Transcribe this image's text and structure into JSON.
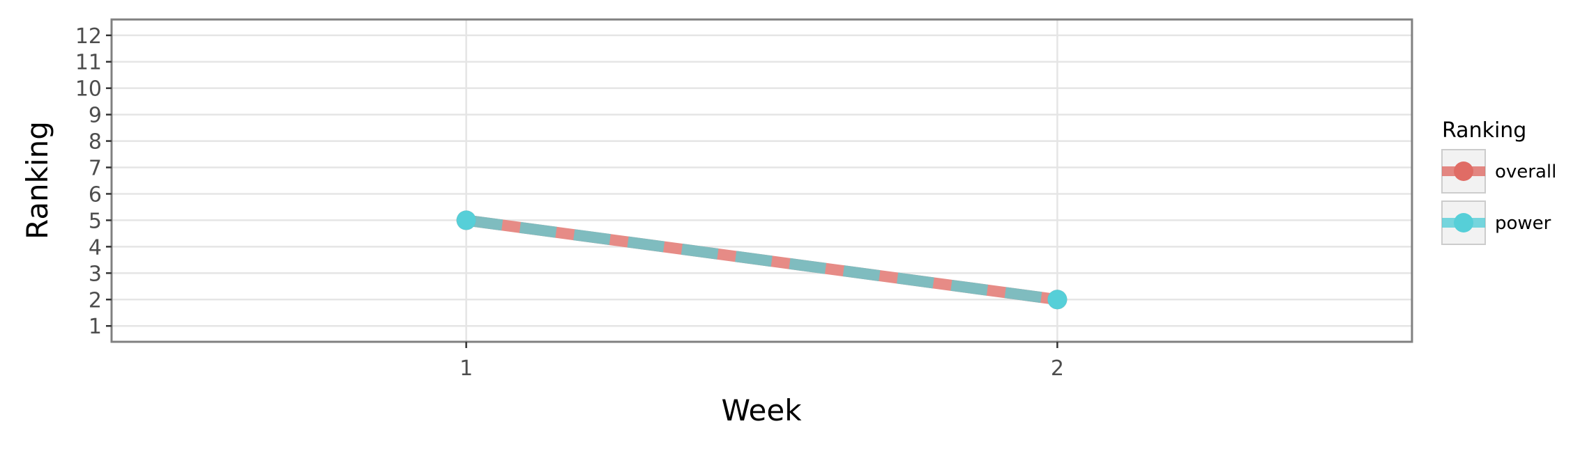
{
  "chart_data": {
    "type": "line",
    "title": "",
    "xlabel": "Week",
    "ylabel": "Ranking",
    "x_ticks": [
      1,
      2
    ],
    "y_ticks": [
      1,
      2,
      3,
      4,
      5,
      6,
      7,
      8,
      9,
      10,
      11,
      12
    ],
    "xlim": [
      0.4,
      2.6
    ],
    "ylim": [
      12.6,
      0.4
    ],
    "y_reversed": true,
    "grid": true,
    "legend": {
      "title": "Ranking",
      "position": "right"
    },
    "series": [
      {
        "name": "overall",
        "color": "#e06c65",
        "x": [
          1,
          2
        ],
        "y": [
          5,
          2
        ]
      },
      {
        "name": "power",
        "color": "#56cfd8",
        "x": [
          1,
          2
        ],
        "y": [
          5,
          2
        ]
      }
    ]
  }
}
